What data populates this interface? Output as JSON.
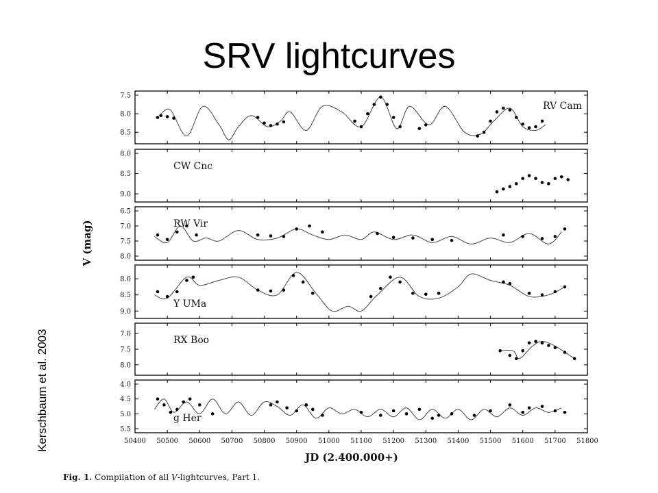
{
  "slide": {
    "title": "SRV lightcurves",
    "credit": "Kerschbaum et al. 2003"
  },
  "caption": {
    "fig_label": "Fig. 1.",
    "text_before": " Compilation of all ",
    "italic": "V",
    "text_after": "-lightcurves, Part 1."
  },
  "chart_data": {
    "type": "line",
    "ylabel": "V (mag)",
    "xlabel": "JD (2.400.000+)",
    "xlim": [
      50400,
      51800
    ],
    "x_ticks": [
      50400,
      50500,
      50600,
      50700,
      50800,
      50900,
      51000,
      51100,
      51200,
      51300,
      51400,
      51500,
      51600,
      51700,
      51800
    ],
    "y_inverted": true,
    "panels": [
      {
        "star": "RV Cam",
        "label_pos": "top-right",
        "ylim": [
          7.5,
          8.7
        ],
        "yticks": [
          "7.5",
          "8.0",
          "8.5"
        ],
        "model": [
          [
            50480,
            8.0
          ],
          [
            50510,
            7.9
          ],
          [
            50560,
            8.6
          ],
          [
            50610,
            7.8
          ],
          [
            50660,
            8.3
          ],
          [
            50690,
            8.7
          ],
          [
            50720,
            8.35
          ],
          [
            50760,
            8.05
          ],
          [
            50810,
            8.35
          ],
          [
            50850,
            8.2
          ],
          [
            50880,
            7.95
          ],
          [
            50930,
            8.45
          ],
          [
            50980,
            7.8
          ],
          [
            51040,
            7.95
          ],
          [
            51100,
            8.35
          ],
          [
            51160,
            7.55
          ],
          [
            51210,
            8.4
          ],
          [
            51250,
            7.8
          ],
          [
            51310,
            8.3
          ],
          [
            51360,
            7.8
          ],
          [
            51420,
            8.5
          ],
          [
            51470,
            8.55
          ],
          [
            51510,
            8.2
          ],
          [
            51560,
            7.85
          ],
          [
            51600,
            8.35
          ],
          [
            51640,
            8.45
          ],
          [
            51670,
            8.3
          ]
        ],
        "observations": [
          [
            50470,
            8.1
          ],
          [
            50480,
            8.05
          ],
          [
            50500,
            8.08
          ],
          [
            50520,
            8.12
          ],
          [
            50780,
            8.1
          ],
          [
            50800,
            8.25
          ],
          [
            50820,
            8.32
          ],
          [
            50840,
            8.28
          ],
          [
            50860,
            8.22
          ],
          [
            51080,
            8.2
          ],
          [
            51100,
            8.35
          ],
          [
            51120,
            8.0
          ],
          [
            51140,
            7.75
          ],
          [
            51160,
            7.55
          ],
          [
            51180,
            7.75
          ],
          [
            51200,
            8.1
          ],
          [
            51220,
            8.35
          ],
          [
            51280,
            8.4
          ],
          [
            51300,
            8.3
          ],
          [
            51460,
            8.6
          ],
          [
            51480,
            8.5
          ],
          [
            51500,
            8.2
          ],
          [
            51520,
            7.95
          ],
          [
            51540,
            7.85
          ],
          [
            51560,
            7.9
          ],
          [
            51580,
            8.1
          ],
          [
            51600,
            8.28
          ],
          [
            51620,
            8.38
          ],
          [
            51640,
            8.35
          ],
          [
            51660,
            8.2
          ]
        ]
      },
      {
        "star": "CW Cnc",
        "label_pos": "top-left",
        "ylim": [
          8.0,
          9.1
        ],
        "yticks": [
          "8.0",
          "8.5",
          "9.0"
        ],
        "model": [],
        "observations": [
          [
            51520,
            8.95
          ],
          [
            51540,
            8.88
          ],
          [
            51560,
            8.82
          ],
          [
            51580,
            8.75
          ],
          [
            51600,
            8.62
          ],
          [
            51620,
            8.55
          ],
          [
            51640,
            8.62
          ],
          [
            51660,
            8.72
          ],
          [
            51680,
            8.75
          ],
          [
            51700,
            8.62
          ],
          [
            51720,
            8.58
          ],
          [
            51740,
            8.65
          ]
        ]
      },
      {
        "star": "RW Vir",
        "label_pos": "top-left",
        "ylim": [
          6.5,
          8.0
        ],
        "yticks": [
          "6.5",
          "7.0",
          "7.5",
          "8.0"
        ],
        "model": [
          [
            50460,
            7.35
          ],
          [
            50500,
            7.55
          ],
          [
            50540,
            7.0
          ],
          [
            50580,
            7.5
          ],
          [
            50620,
            7.4
          ],
          [
            50660,
            7.5
          ],
          [
            50720,
            7.15
          ],
          [
            50780,
            7.45
          ],
          [
            50840,
            7.4
          ],
          [
            50900,
            7.1
          ],
          [
            50950,
            7.3
          ],
          [
            51000,
            7.45
          ],
          [
            51050,
            7.3
          ],
          [
            51100,
            7.45
          ],
          [
            51140,
            7.2
          ],
          [
            51200,
            7.45
          ],
          [
            51260,
            7.3
          ],
          [
            51320,
            7.55
          ],
          [
            51380,
            7.35
          ],
          [
            51440,
            7.6
          ],
          [
            51500,
            7.4
          ],
          [
            51560,
            7.55
          ],
          [
            51620,
            7.25
          ],
          [
            51680,
            7.6
          ],
          [
            51720,
            7.2
          ]
        ],
        "observations": [
          [
            50470,
            7.3
          ],
          [
            50500,
            7.45
          ],
          [
            50530,
            7.2
          ],
          [
            50560,
            7.0
          ],
          [
            50590,
            7.3
          ],
          [
            50780,
            7.3
          ],
          [
            50820,
            7.33
          ],
          [
            50860,
            7.35
          ],
          [
            50900,
            7.1
          ],
          [
            50940,
            7.0
          ],
          [
            50980,
            7.2
          ],
          [
            51150,
            7.25
          ],
          [
            51200,
            7.38
          ],
          [
            51260,
            7.4
          ],
          [
            51320,
            7.45
          ],
          [
            51380,
            7.48
          ],
          [
            51540,
            7.3
          ],
          [
            51600,
            7.35
          ],
          [
            51660,
            7.42
          ],
          [
            51700,
            7.35
          ],
          [
            51730,
            7.1
          ]
        ]
      },
      {
        "star": "Y UMa",
        "label_pos": "bottom-left",
        "ylim": [
          7.7,
          9.1
        ],
        "yticks": [
          "8.0",
          "8.5",
          "9.0"
        ],
        "model": [
          [
            50460,
            8.5
          ],
          [
            50500,
            8.6
          ],
          [
            50560,
            7.95
          ],
          [
            50600,
            8.2
          ],
          [
            50660,
            8.05
          ],
          [
            50720,
            7.95
          ],
          [
            50780,
            8.35
          ],
          [
            50840,
            8.5
          ],
          [
            50900,
            7.8
          ],
          [
            50960,
            8.45
          ],
          [
            51010,
            9.0
          ],
          [
            51060,
            8.85
          ],
          [
            51100,
            9.0
          ],
          [
            51150,
            8.5
          ],
          [
            51220,
            7.95
          ],
          [
            51280,
            8.55
          ],
          [
            51340,
            8.6
          ],
          [
            51400,
            8.25
          ],
          [
            51440,
            7.85
          ],
          [
            51500,
            8.05
          ],
          [
            51560,
            8.2
          ],
          [
            51620,
            8.55
          ],
          [
            51680,
            8.5
          ],
          [
            51730,
            8.25
          ]
        ],
        "observations": [
          [
            50470,
            8.4
          ],
          [
            50500,
            8.55
          ],
          [
            50530,
            8.4
          ],
          [
            50560,
            8.05
          ],
          [
            50580,
            7.95
          ],
          [
            50780,
            8.35
          ],
          [
            50820,
            8.38
          ],
          [
            50860,
            8.35
          ],
          [
            50890,
            7.9
          ],
          [
            50920,
            8.1
          ],
          [
            50950,
            8.45
          ],
          [
            51130,
            8.55
          ],
          [
            51160,
            8.3
          ],
          [
            51190,
            7.95
          ],
          [
            51220,
            8.1
          ],
          [
            51260,
            8.45
          ],
          [
            51300,
            8.48
          ],
          [
            51340,
            8.45
          ],
          [
            51540,
            8.1
          ],
          [
            51560,
            8.15
          ],
          [
            51620,
            8.45
          ],
          [
            51660,
            8.5
          ],
          [
            51700,
            8.4
          ],
          [
            51730,
            8.25
          ]
        ]
      },
      {
        "star": "RX Boo",
        "label_pos": "top-left",
        "ylim": [
          6.8,
          8.2
        ],
        "yticks": [
          "7.0",
          "7.5",
          "8.0"
        ],
        "model": [
          [
            51530,
            7.55
          ],
          [
            51570,
            7.55
          ],
          [
            51590,
            7.8
          ],
          [
            51630,
            7.4
          ],
          [
            51660,
            7.25
          ],
          [
            51700,
            7.4
          ],
          [
            51760,
            7.8
          ]
        ],
        "observations": [
          [
            51530,
            7.55
          ],
          [
            51560,
            7.7
          ],
          [
            51580,
            7.8
          ],
          [
            51600,
            7.55
          ],
          [
            51620,
            7.3
          ],
          [
            51640,
            7.25
          ],
          [
            51660,
            7.3
          ],
          [
            51680,
            7.38
          ],
          [
            51700,
            7.45
          ],
          [
            51730,
            7.6
          ],
          [
            51760,
            7.8
          ]
        ]
      },
      {
        "star": "g Her",
        "label_pos": "bottom-left",
        "ylim": [
          4.0,
          5.5
        ],
        "yticks": [
          "4.0",
          "4.5",
          "5.0",
          "5.5"
        ],
        "model": [
          [
            50460,
            4.85
          ],
          [
            50490,
            4.5
          ],
          [
            50520,
            4.95
          ],
          [
            50560,
            4.6
          ],
          [
            50600,
            5.0
          ],
          [
            50640,
            4.5
          ],
          [
            50680,
            5.0
          ],
          [
            50720,
            4.6
          ],
          [
            50760,
            5.05
          ],
          [
            50800,
            4.6
          ],
          [
            50840,
            4.75
          ],
          [
            50880,
            5.05
          ],
          [
            50920,
            4.7
          ],
          [
            50960,
            5.15
          ],
          [
            51000,
            4.8
          ],
          [
            51040,
            5.0
          ],
          [
            51080,
            4.85
          ],
          [
            51120,
            5.1
          ],
          [
            51160,
            4.85
          ],
          [
            51200,
            5.1
          ],
          [
            51240,
            4.8
          ],
          [
            51280,
            5.2
          ],
          [
            51320,
            4.85
          ],
          [
            51360,
            5.15
          ],
          [
            51400,
            4.85
          ],
          [
            51440,
            5.2
          ],
          [
            51480,
            4.85
          ],
          [
            51520,
            5.1
          ],
          [
            51560,
            4.8
          ],
          [
            51600,
            5.05
          ],
          [
            51640,
            4.8
          ],
          [
            51680,
            4.95
          ],
          [
            51720,
            4.8
          ]
        ],
        "observations": [
          [
            50470,
            4.5
          ],
          [
            50490,
            4.7
          ],
          [
            50510,
            4.95
          ],
          [
            50530,
            4.85
          ],
          [
            50550,
            4.6
          ],
          [
            50570,
            4.5
          ],
          [
            50600,
            4.7
          ],
          [
            50640,
            5.0
          ],
          [
            50820,
            4.7
          ],
          [
            50840,
            4.6
          ],
          [
            50870,
            4.8
          ],
          [
            50900,
            4.9
          ],
          [
            50930,
            4.7
          ],
          [
            50950,
            4.85
          ],
          [
            50980,
            5.05
          ],
          [
            51100,
            4.95
          ],
          [
            51160,
            5.05
          ],
          [
            51200,
            4.9
          ],
          [
            51240,
            5.0
          ],
          [
            51280,
            4.85
          ],
          [
            51320,
            5.15
          ],
          [
            51340,
            5.05
          ],
          [
            51380,
            5.0
          ],
          [
            51450,
            5.05
          ],
          [
            51500,
            4.9
          ],
          [
            51560,
            4.7
          ],
          [
            51600,
            4.95
          ],
          [
            51620,
            4.8
          ],
          [
            51660,
            4.75
          ],
          [
            51700,
            4.9
          ],
          [
            51730,
            4.95
          ]
        ]
      }
    ]
  }
}
